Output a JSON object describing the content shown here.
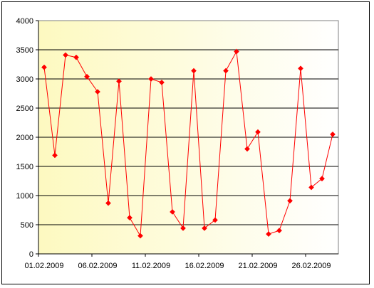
{
  "chart_data": {
    "type": "line",
    "title": "",
    "xlabel": "",
    "ylabel": "",
    "ylim": [
      0,
      4000
    ],
    "y_ticks": [
      0,
      500,
      1000,
      1500,
      2000,
      2500,
      3000,
      3500,
      4000
    ],
    "x_tick_labels": [
      "01.02.2009",
      "06.02.2009",
      "11.02.2009",
      "16.02.2009",
      "21.02.2009",
      "26.02.2009"
    ],
    "x_tick_label_indices": [
      0,
      5,
      10,
      15,
      20,
      25
    ],
    "grid": true,
    "legend": "none",
    "colors": {
      "line": "#ff0000",
      "marker": "#ff0000",
      "plot_bg_start": "#fdf9c0",
      "plot_bg_end": "#ffffff"
    },
    "series": [
      {
        "x": [
          "01.02.2009",
          "02.02.2009",
          "03.02.2009",
          "04.02.2009",
          "05.02.2009",
          "06.02.2009",
          "07.02.2009",
          "08.02.2009",
          "09.02.2009",
          "10.02.2009",
          "11.02.2009",
          "12.02.2009",
          "13.02.2009",
          "14.02.2009",
          "15.02.2009",
          "16.02.2009",
          "17.02.2009",
          "18.02.2009",
          "19.02.2009",
          "20.02.2009",
          "21.02.2009",
          "22.02.2009",
          "23.02.2009",
          "24.02.2009",
          "25.02.2009",
          "26.02.2009",
          "27.02.2009",
          "28.02.2009"
        ],
        "values": [
          3200,
          1690,
          3410,
          3370,
          3040,
          2780,
          870,
          2960,
          620,
          310,
          3000,
          2940,
          720,
          440,
          3140,
          440,
          580,
          3140,
          3470,
          1800,
          2090,
          340,
          400,
          910,
          3180,
          1140,
          1290,
          2050
        ]
      }
    ]
  }
}
